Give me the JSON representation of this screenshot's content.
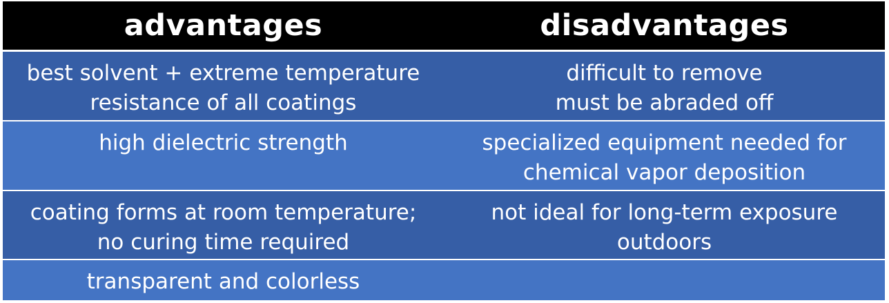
{
  "headers": {
    "advantages": "advantages",
    "disadvantages": "disadvantages"
  },
  "rows": [
    {
      "advantage": "best solvent + extreme temperature\nresistance of all coatings",
      "disadvantage": "difficult to remove\nmust be abraded off"
    },
    {
      "advantage": "high dielectric strength",
      "disadvantage": "specialized equipment needed for\nchemical vapor deposition"
    },
    {
      "advantage": "coating forms at room temperature;\nno curing time required",
      "disadvantage": "not ideal for long-term exposure\noutdoors"
    },
    {
      "advantage": "transparent and colorless",
      "disadvantage": ""
    }
  ],
  "colors": {
    "header_background": "#000000",
    "row_dark": "#365ea6",
    "row_light": "#4474c4",
    "text": "#ffffff"
  }
}
